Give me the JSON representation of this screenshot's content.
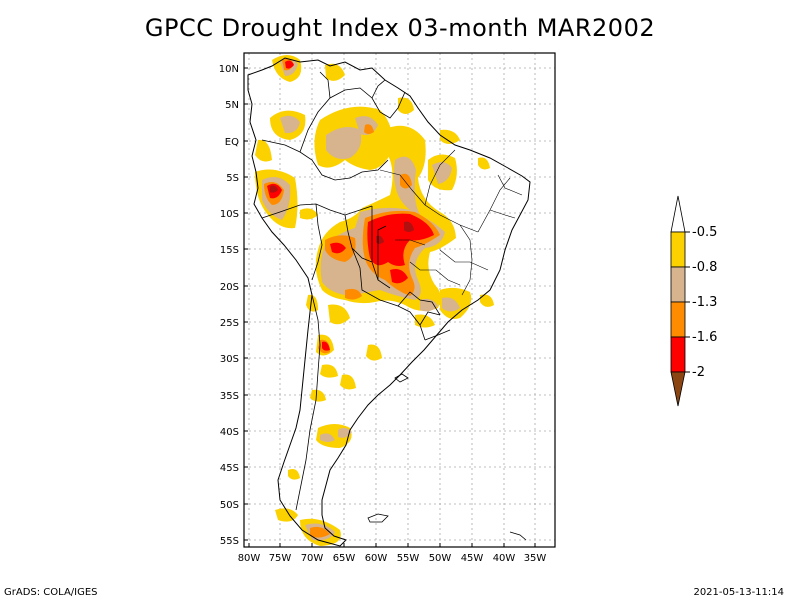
{
  "title": "GPCC Drought Index 03-month MAR2002",
  "footer": {
    "left": "GrADS: COLA/IGES",
    "right": "2021-05-13-11:14"
  },
  "axes": {
    "lat_ticks": [
      "10N",
      "5N",
      "EQ",
      "5S",
      "10S",
      "15S",
      "20S",
      "25S",
      "30S",
      "35S",
      "40S",
      "45S",
      "50S",
      "55S"
    ],
    "lon_ticks": [
      "80W",
      "75W",
      "70W",
      "65W",
      "60W",
      "55W",
      "50W",
      "45W",
      "40W",
      "35W"
    ]
  },
  "legend": {
    "labels": [
      "-0.5",
      "-0.8",
      "-1.3",
      "-1.6",
      "-2"
    ],
    "colors": [
      "#ffffff",
      "#fbd100",
      "#d9b38c",
      "#ff8c00",
      "#ff0000",
      "#8b4513"
    ]
  },
  "colors": {
    "yellow": "#fbd100",
    "tan": "#d7b48e",
    "orange": "#ff8c00",
    "red": "#ff0000",
    "brown": "#8b4513"
  }
}
